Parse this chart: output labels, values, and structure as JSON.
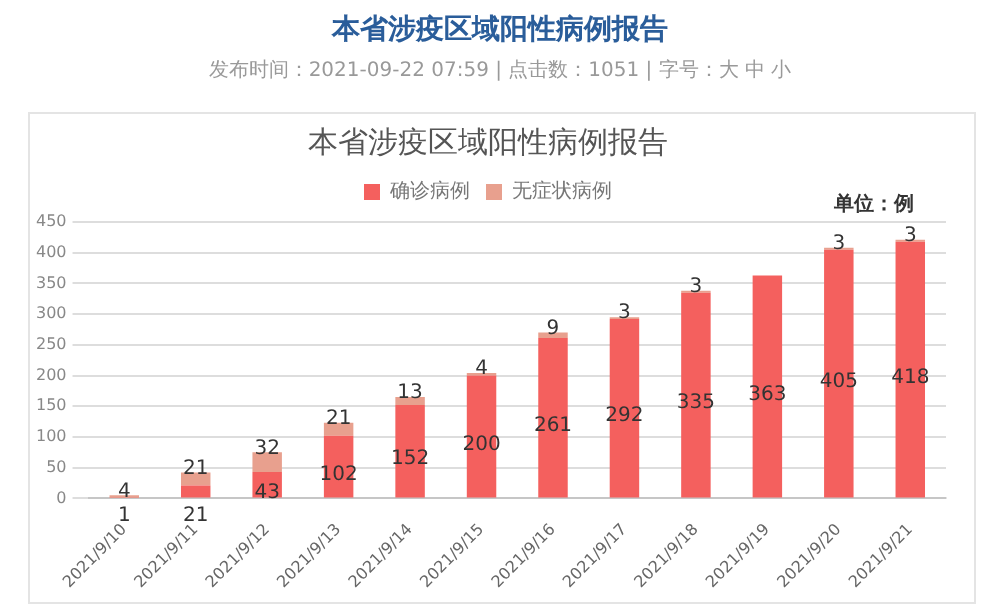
{
  "chart_data": {
    "type": "bar",
    "title": "本省涉疫区域阳性病例报告",
    "annotations": [
      "本省涉疫区域阳性病例报告",
      "发布时间：2021-09-22 07:59 | 点击数：1051 | 字号：大 中 小",
      "单位：例"
    ],
    "categories": [
      "2021/9/10",
      "2021/9/11",
      "2021/9/12",
      "2021/9/13",
      "2021/9/14",
      "2021/9/15",
      "2021/9/16",
      "2021/9/17",
      "2021/9/18",
      "2021/9/19",
      "2021/9/20",
      "2021/9/21"
    ],
    "series": [
      {
        "name": "确诊病例",
        "color": "#f4605e",
        "values": [
          1,
          21,
          43,
          102,
          152,
          200,
          261,
          292,
          335,
          363,
          405,
          418
        ]
      },
      {
        "name": "无症状病例",
        "color": "#e8a08e",
        "values": [
          4,
          21,
          32,
          21,
          13,
          4,
          9,
          3,
          3,
          null,
          3,
          3
        ]
      }
    ],
    "stacked": true,
    "ylim": [
      0,
      450
    ],
    "yticks": [
      0,
      50,
      100,
      150,
      200,
      250,
      300,
      350,
      400,
      450
    ],
    "grid": "y",
    "legend": "top",
    "data_labels": true
  }
}
